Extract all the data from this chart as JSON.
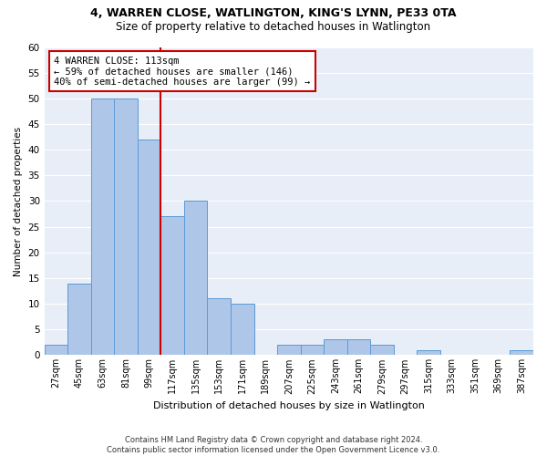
{
  "title": "4, WARREN CLOSE, WATLINGTON, KING'S LYNN, PE33 0TA",
  "subtitle": "Size of property relative to detached houses in Watlington",
  "xlabel": "Distribution of detached houses by size in Watlington",
  "ylabel": "Number of detached properties",
  "categories": [
    "27sqm",
    "45sqm",
    "63sqm",
    "81sqm",
    "99sqm",
    "117sqm",
    "135sqm",
    "153sqm",
    "171sqm",
    "189sqm",
    "207sqm",
    "225sqm",
    "243sqm",
    "261sqm",
    "279sqm",
    "297sqm",
    "315sqm",
    "333sqm",
    "351sqm",
    "369sqm",
    "387sqm"
  ],
  "values": [
    2,
    14,
    50,
    50,
    42,
    27,
    30,
    11,
    10,
    0,
    2,
    2,
    3,
    3,
    2,
    0,
    1,
    0,
    0,
    0,
    1
  ],
  "bar_color": "#aec6e8",
  "bar_edge_color": "#5b9bd5",
  "annotation_line1": "4 WARREN CLOSE: 113sqm",
  "annotation_line2": "← 59% of detached houses are smaller (146)",
  "annotation_line3": "40% of semi-detached houses are larger (99) →",
  "annotation_box_color": "#ffffff",
  "annotation_box_edge_color": "#cc0000",
  "vline_color": "#cc0000",
  "ylim": [
    0,
    60
  ],
  "yticks": [
    0,
    5,
    10,
    15,
    20,
    25,
    30,
    35,
    40,
    45,
    50,
    55,
    60
  ],
  "background_color": "#e8eef8",
  "grid_color": "#ffffff",
  "title_fontsize": 9,
  "subtitle_fontsize": 8.5,
  "footer_line1": "Contains HM Land Registry data © Crown copyright and database right 2024.",
  "footer_line2": "Contains public sector information licensed under the Open Government Licence v3.0."
}
